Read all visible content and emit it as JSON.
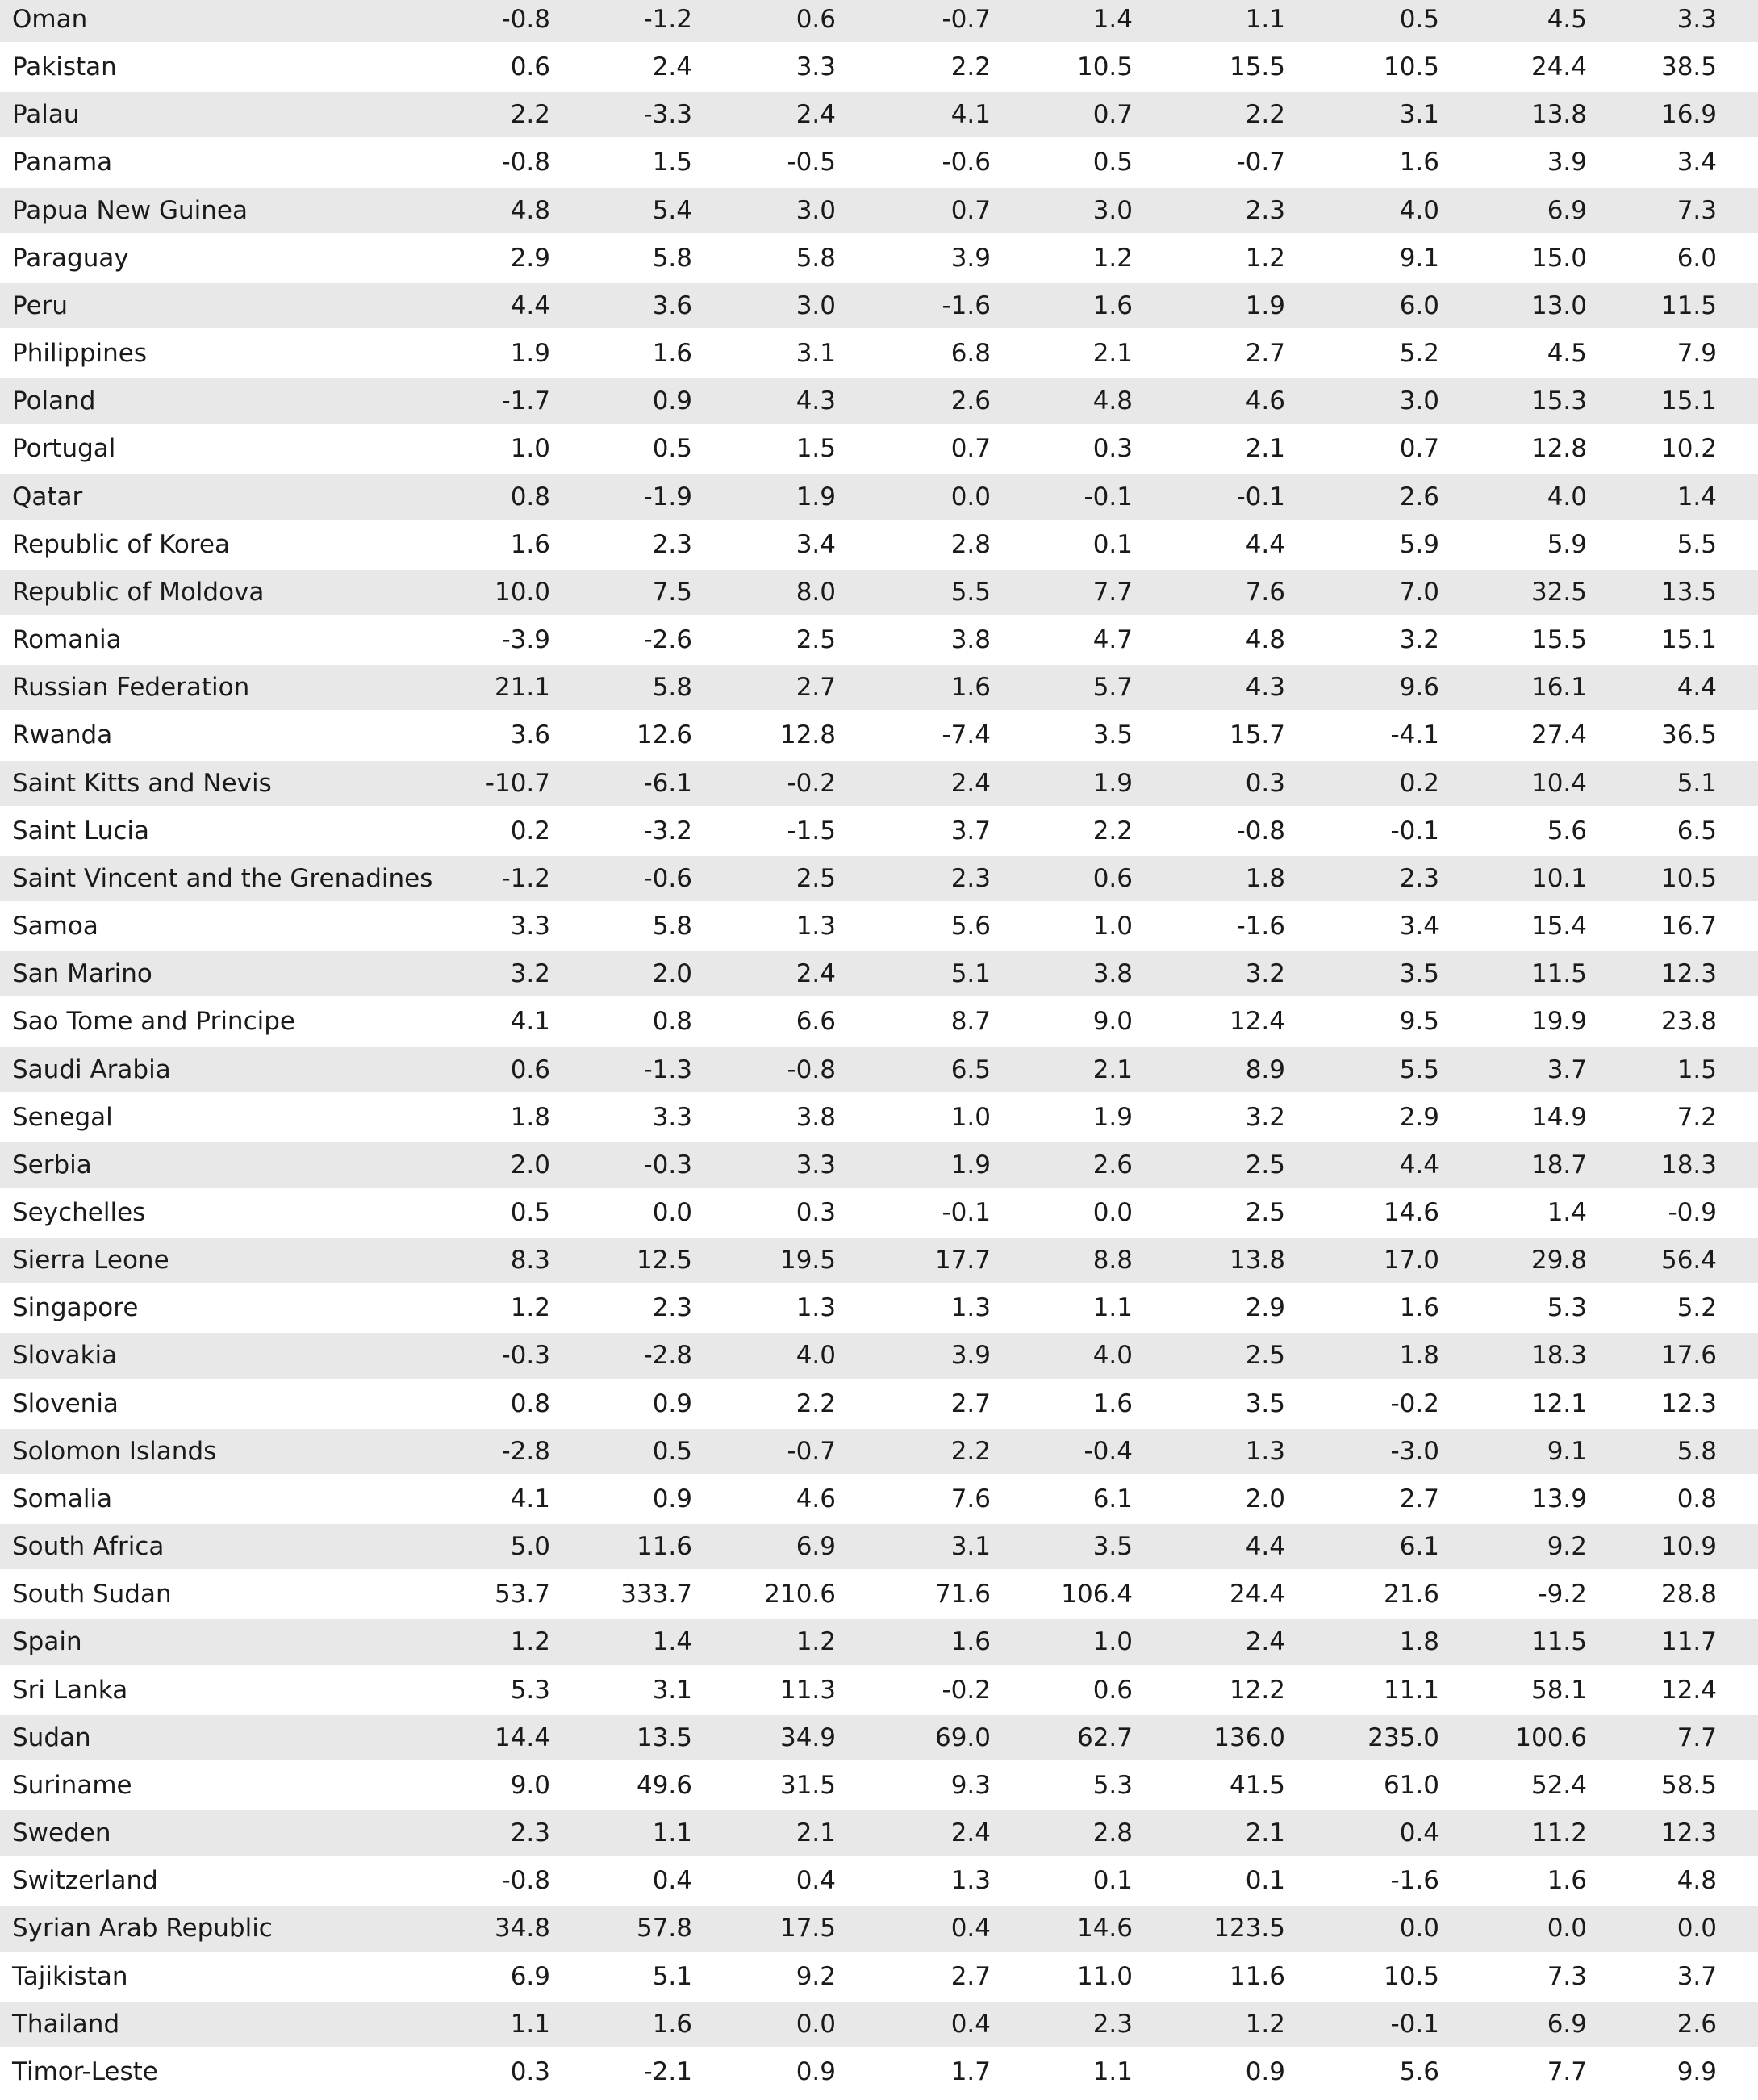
{
  "table": {
    "rows": [
      [
        "Oman",
        "-0.8",
        "-1.2",
        "0.6",
        "-0.7",
        "1.4",
        "1.1",
        "0.5",
        "4.5",
        "3.3"
      ],
      [
        "Pakistan",
        "0.6",
        "2.4",
        "3.3",
        "2.2",
        "10.5",
        "15.5",
        "10.5",
        "24.4",
        "38.5"
      ],
      [
        "Palau",
        "2.2",
        "-3.3",
        "2.4",
        "4.1",
        "0.7",
        "2.2",
        "3.1",
        "13.8",
        "16.9"
      ],
      [
        "Panama",
        "-0.8",
        "1.5",
        "-0.5",
        "-0.6",
        "0.5",
        "-0.7",
        "1.6",
        "3.9",
        "3.4"
      ],
      [
        "Papua New Guinea",
        "4.8",
        "5.4",
        "3.0",
        "0.7",
        "3.0",
        "2.3",
        "4.0",
        "6.9",
        "7.3"
      ],
      [
        "Paraguay",
        "2.9",
        "5.8",
        "5.8",
        "3.9",
        "1.2",
        "1.2",
        "9.1",
        "15.0",
        "6.0"
      ],
      [
        "Peru",
        "4.4",
        "3.6",
        "3.0",
        "-1.6",
        "1.6",
        "1.9",
        "6.0",
        "13.0",
        "11.5"
      ],
      [
        "Philippines",
        "1.9",
        "1.6",
        "3.1",
        "6.8",
        "2.1",
        "2.7",
        "5.2",
        "4.5",
        "7.9"
      ],
      [
        "Poland",
        "-1.7",
        "0.9",
        "4.3",
        "2.6",
        "4.8",
        "4.6",
        "3.0",
        "15.3",
        "15.1"
      ],
      [
        "Portugal",
        "1.0",
        "0.5",
        "1.5",
        "0.7",
        "0.3",
        "2.1",
        "0.7",
        "12.8",
        "10.2"
      ],
      [
        "Qatar",
        "0.8",
        "-1.9",
        "1.9",
        "0.0",
        "-0.1",
        "-0.1",
        "2.6",
        "4.0",
        "1.4"
      ],
      [
        "Republic of Korea",
        "1.6",
        "2.3",
        "3.4",
        "2.8",
        "0.1",
        "4.4",
        "5.9",
        "5.9",
        "5.5"
      ],
      [
        "Republic of Moldova",
        "10.0",
        "7.5",
        "8.0",
        "5.5",
        "7.7",
        "7.6",
        "7.0",
        "32.5",
        "13.5"
      ],
      [
        "Romania",
        "-3.9",
        "-2.6",
        "2.5",
        "3.8",
        "4.7",
        "4.8",
        "3.2",
        "15.5",
        "15.1"
      ],
      [
        "Russian Federation",
        "21.1",
        "5.8",
        "2.7",
        "1.6",
        "5.7",
        "4.3",
        "9.6",
        "16.1",
        "4.4"
      ],
      [
        "Rwanda",
        "3.6",
        "12.6",
        "12.8",
        "-7.4",
        "3.5",
        "15.7",
        "-4.1",
        "27.4",
        "36.5"
      ],
      [
        "Saint Kitts and Nevis",
        "-10.7",
        "-6.1",
        "-0.2",
        "2.4",
        "1.9",
        "0.3",
        "0.2",
        "10.4",
        "5.1"
      ],
      [
        "Saint Lucia",
        "0.2",
        "-3.2",
        "-1.5",
        "3.7",
        "2.2",
        "-0.8",
        "-0.1",
        "5.6",
        "6.5"
      ],
      [
        "Saint Vincent and the Grenadines",
        "-1.2",
        "-0.6",
        "2.5",
        "2.3",
        "0.6",
        "1.8",
        "2.3",
        "10.1",
        "10.5"
      ],
      [
        "Samoa",
        "3.3",
        "5.8",
        "1.3",
        "5.6",
        "1.0",
        "-1.6",
        "3.4",
        "15.4",
        "16.7"
      ],
      [
        "San Marino",
        "3.2",
        "2.0",
        "2.4",
        "5.1",
        "3.8",
        "3.2",
        "3.5",
        "11.5",
        "12.3"
      ],
      [
        "Sao Tome and Principe",
        "4.1",
        "0.8",
        "6.6",
        "8.7",
        "9.0",
        "12.4",
        "9.5",
        "19.9",
        "23.8"
      ],
      [
        "Saudi Arabia",
        "0.6",
        "-1.3",
        "-0.8",
        "6.5",
        "2.1",
        "8.9",
        "5.5",
        "3.7",
        "1.5"
      ],
      [
        "Senegal",
        "1.8",
        "3.3",
        "3.8",
        "1.0",
        "1.9",
        "3.2",
        "2.9",
        "14.9",
        "7.2"
      ],
      [
        "Serbia",
        "2.0",
        "-0.3",
        "3.3",
        "1.9",
        "2.6",
        "2.5",
        "4.4",
        "18.7",
        "18.3"
      ],
      [
        "Seychelles",
        "0.5",
        "0.0",
        "0.3",
        "-0.1",
        "0.0",
        "2.5",
        "14.6",
        "1.4",
        "-0.9"
      ],
      [
        "Sierra Leone",
        "8.3",
        "12.5",
        "19.5",
        "17.7",
        "8.8",
        "13.8",
        "17.0",
        "29.8",
        "56.4"
      ],
      [
        "Singapore",
        "1.2",
        "2.3",
        "1.3",
        "1.3",
        "1.1",
        "2.9",
        "1.6",
        "5.3",
        "5.2"
      ],
      [
        "Slovakia",
        "-0.3",
        "-2.8",
        "4.0",
        "3.9",
        "4.0",
        "2.5",
        "1.8",
        "18.3",
        "17.6"
      ],
      [
        "Slovenia",
        "0.8",
        "0.9",
        "2.2",
        "2.7",
        "1.6",
        "3.5",
        "-0.2",
        "12.1",
        "12.3"
      ],
      [
        "Solomon Islands",
        "-2.8",
        "0.5",
        "-0.7",
        "2.2",
        "-0.4",
        "1.3",
        "-3.0",
        "9.1",
        "5.8"
      ],
      [
        "Somalia",
        "4.1",
        "0.9",
        "4.6",
        "7.6",
        "6.1",
        "2.0",
        "2.7",
        "13.9",
        "0.8"
      ],
      [
        "South Africa",
        "5.0",
        "11.6",
        "6.9",
        "3.1",
        "3.5",
        "4.4",
        "6.1",
        "9.2",
        "10.9"
      ],
      [
        "South Sudan",
        "53.7",
        "333.7",
        "210.6",
        "71.6",
        "106.4",
        "24.4",
        "21.6",
        "-9.2",
        "28.8"
      ],
      [
        "Spain",
        "1.2",
        "1.4",
        "1.2",
        "1.6",
        "1.0",
        "2.4",
        "1.8",
        "11.5",
        "11.7"
      ],
      [
        "Sri Lanka",
        "5.3",
        "3.1",
        "11.3",
        "-0.2",
        "0.6",
        "12.2",
        "11.1",
        "58.1",
        "12.4"
      ],
      [
        "Sudan",
        "14.4",
        "13.5",
        "34.9",
        "69.0",
        "62.7",
        "136.0",
        "235.0",
        "100.6",
        "7.7"
      ],
      [
        "Suriname",
        "9.0",
        "49.6",
        "31.5",
        "9.3",
        "5.3",
        "41.5",
        "61.0",
        "52.4",
        "58.5"
      ],
      [
        "Sweden",
        "2.3",
        "1.1",
        "2.1",
        "2.4",
        "2.8",
        "2.1",
        "0.4",
        "11.2",
        "12.3"
      ],
      [
        "Switzerland",
        "-0.8",
        "0.4",
        "0.4",
        "1.3",
        "0.1",
        "0.1",
        "-1.6",
        "1.6",
        "4.8"
      ],
      [
        "Syrian Arab Republic",
        "34.8",
        "57.8",
        "17.5",
        "0.4",
        "14.6",
        "123.5",
        "0.0",
        "0.0",
        "0.0"
      ],
      [
        "Tajikistan",
        "6.9",
        "5.1",
        "9.2",
        "2.7",
        "11.0",
        "11.6",
        "10.5",
        "7.3",
        "3.7"
      ],
      [
        "Thailand",
        "1.1",
        "1.6",
        "0.0",
        "0.4",
        "2.3",
        "1.2",
        "-0.1",
        "6.9",
        "2.6"
      ],
      [
        "Timor-Leste",
        "0.3",
        "-2.1",
        "0.9",
        "1.7",
        "1.1",
        "0.9",
        "5.6",
        "7.7",
        "9.9"
      ]
    ]
  }
}
